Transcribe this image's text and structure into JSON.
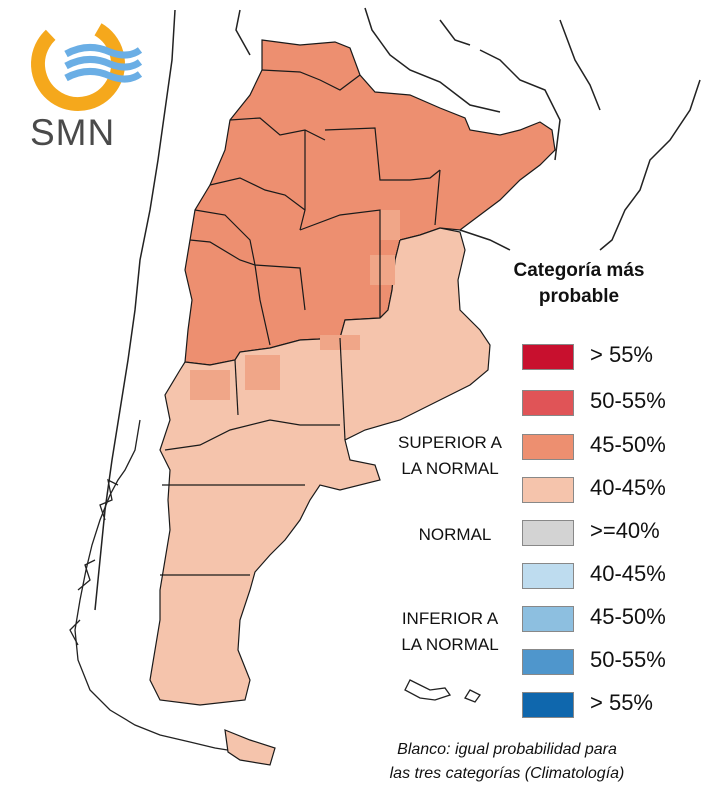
{
  "logo": {
    "text": "SMN"
  },
  "legend": {
    "title_line1": "Categoría más",
    "title_line2": "probable",
    "groups": {
      "superior_line1": "SUPERIOR A",
      "superior_line2": "LA NORMAL",
      "normal": "NORMAL",
      "inferior_line1": "INFERIOR A",
      "inferior_line2": "LA NORMAL"
    },
    "items": [
      {
        "label": "> 55%",
        "color": "#c8102e"
      },
      {
        "label": "50-55%",
        "color": "#e05457"
      },
      {
        "label": "45-50%",
        "color": "#ed8f70"
      },
      {
        "label": "40-45%",
        "color": "#f5c4ac"
      },
      {
        "label": ">=40%",
        "color": "#d3d3d3"
      },
      {
        "label": "40-45%",
        "color": "#bedcef"
      },
      {
        "label": "45-50%",
        "color": "#8dbfe0"
      },
      {
        "label": "50-55%",
        "color": "#4f96cc"
      },
      {
        "label": "> 55%",
        "color": "#0f67ad"
      }
    ]
  },
  "note_line1": "Blanco: igual probabilidad para",
  "note_line2": "las tres categorías (Climatología)",
  "colors": {
    "high": "#ed8f70",
    "mid": "#f5c4ac",
    "border": "#1a1a1a"
  }
}
